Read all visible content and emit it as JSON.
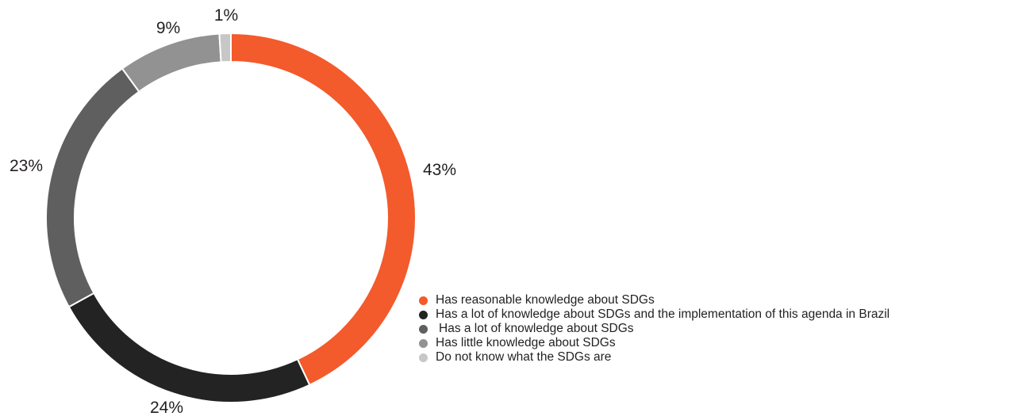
{
  "chart_data": {
    "type": "pie",
    "style": "donut",
    "slices": [
      {
        "label": "Has reasonable knowledge about SDGs",
        "value": 43,
        "display": "43%",
        "color": "#f35a2c"
      },
      {
        "label": "Has a lot of knowledge about SDGs and the implementation of this agenda in Brazil",
        "value": 24,
        "display": "24%",
        "color": "#232323"
      },
      {
        "label": "Has a lot of knowledge about SDGs",
        "value": 23,
        "display": "23%",
        "color": "#5f5f5f"
      },
      {
        "label": "Has little knowledge about SDGs",
        "value": 9,
        "display": "9%",
        "color": "#929292"
      },
      {
        "label": "Do not know what the SDGs are",
        "value": 1,
        "display": "1%",
        "color": "#c7c7c7"
      }
    ],
    "legend_position": "bottom-right"
  }
}
